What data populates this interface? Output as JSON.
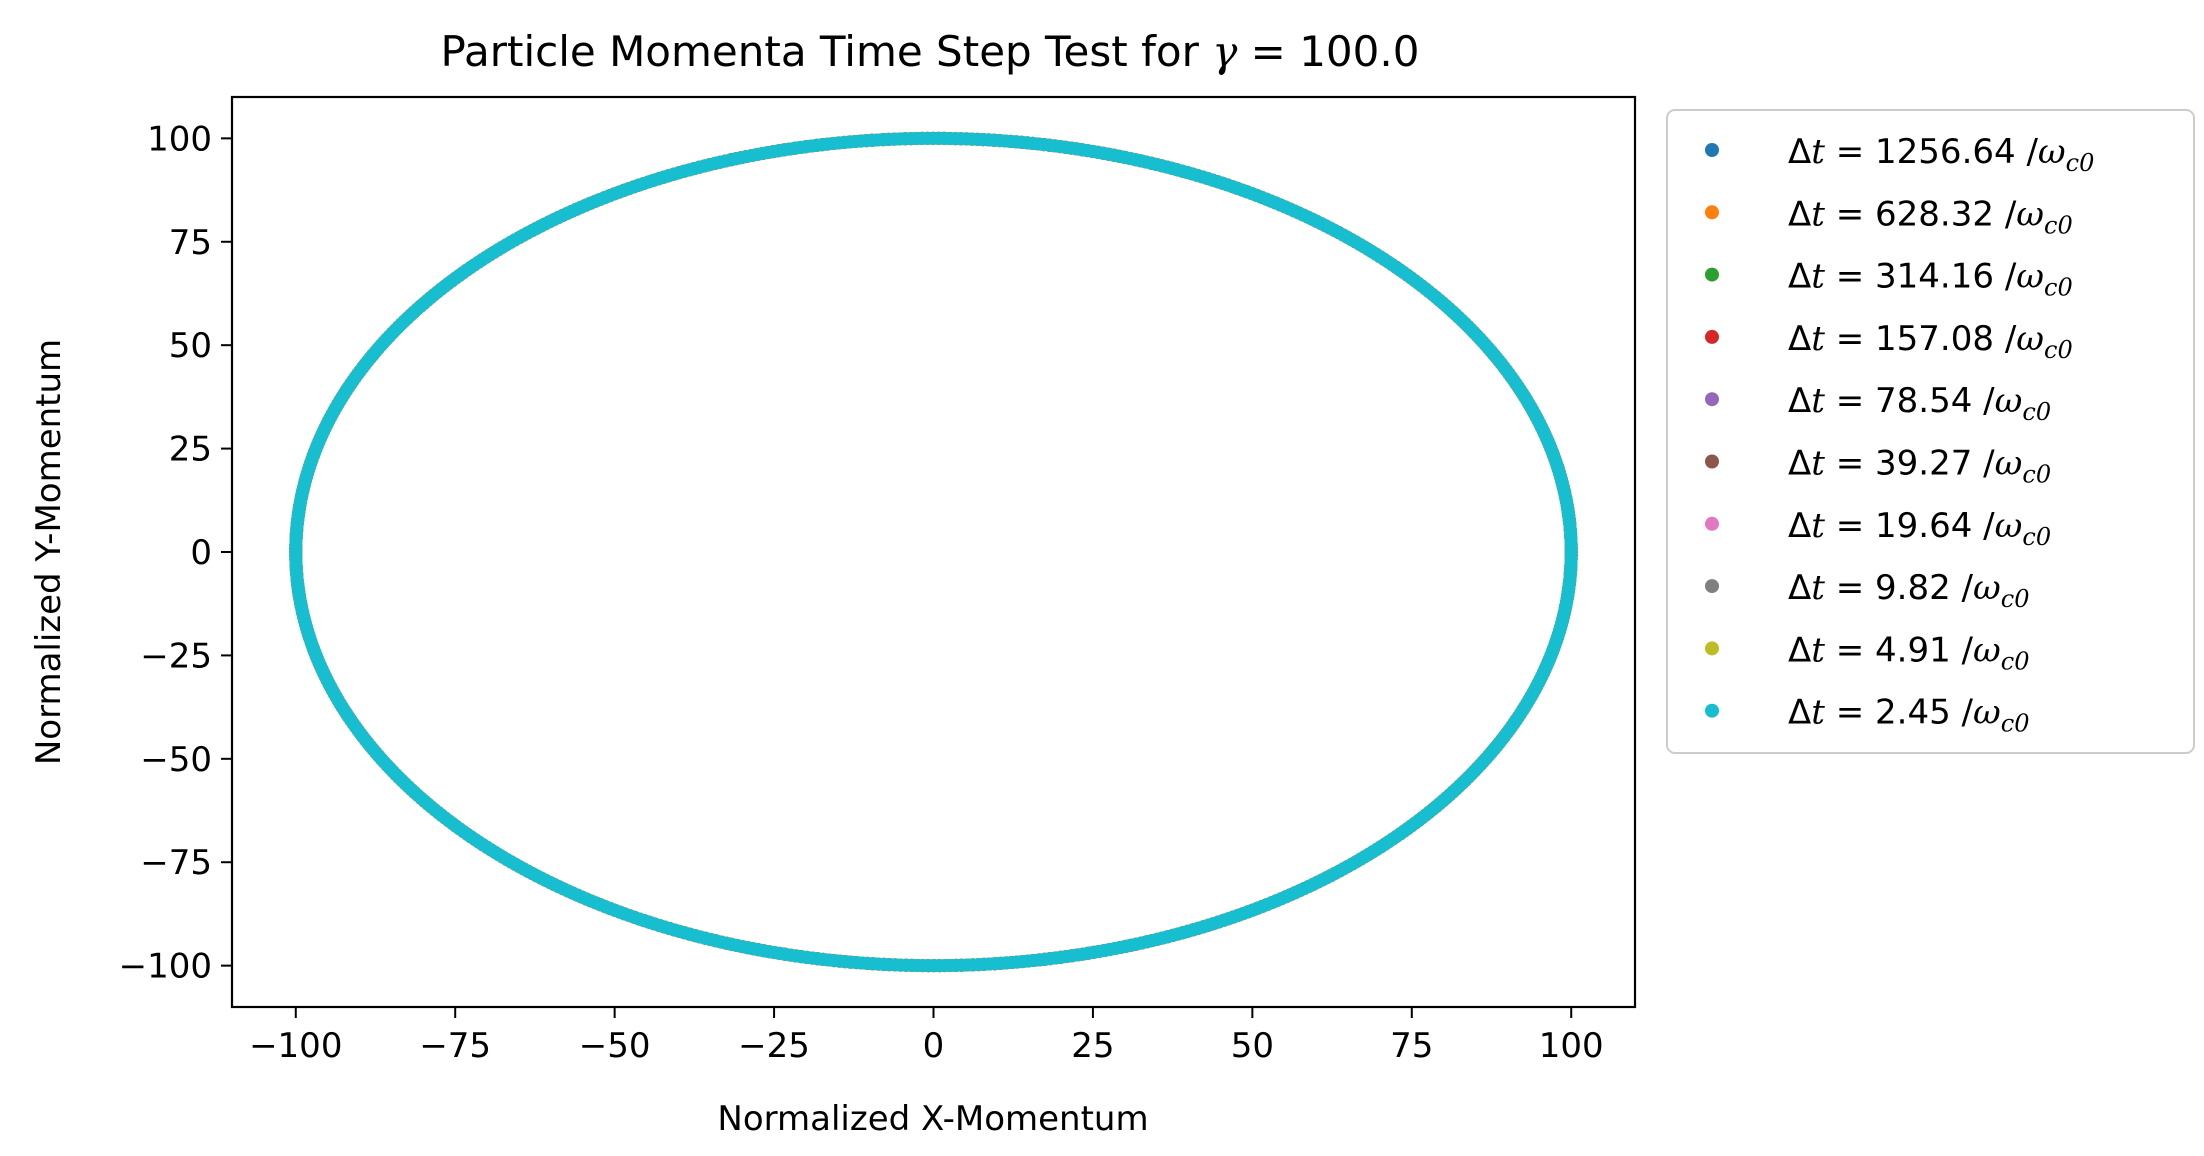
{
  "chart_data": {
    "type": "scatter",
    "title": {
      "prefix": "Particle Momenta Time Step Test for ",
      "symbol": "γ",
      "suffix": " = 100.0"
    },
    "xlabel": "Normalized X-Momentum",
    "ylabel": "Normalized Y-Momentum",
    "xlim": [
      -110,
      110
    ],
    "ylim": [
      -110,
      110
    ],
    "xticks": [
      -100,
      -75,
      -50,
      -25,
      0,
      25,
      50,
      75,
      100
    ],
    "yticks": [
      -100,
      -75,
      -50,
      -25,
      0,
      25,
      50,
      75,
      100
    ],
    "grid": false,
    "legend_position": "outside-right",
    "legend_prefix": "Δt = ",
    "legend_unit": "/ω",
    "legend_unit_sub": "c0",
    "series": [
      {
        "name": "1256.64",
        "color": "#1f77b4",
        "radius": 100
      },
      {
        "name": "628.32",
        "color": "#ff7f0e",
        "radius": 100
      },
      {
        "name": "314.16",
        "color": "#2ca02c",
        "radius": 100
      },
      {
        "name": "157.08",
        "color": "#d62728",
        "radius": 100
      },
      {
        "name": "78.54",
        "color": "#9467bd",
        "radius": 100
      },
      {
        "name": "39.27",
        "color": "#8c564b",
        "radius": 100
      },
      {
        "name": "19.64",
        "color": "#e377c2",
        "radius": 100
      },
      {
        "name": "9.82",
        "color": "#7f7f7f",
        "radius": 100
      },
      {
        "name": "4.91",
        "color": "#bcbd22",
        "radius": 100
      },
      {
        "name": "2.45",
        "color": "#17becf",
        "radius": 100
      }
    ]
  }
}
